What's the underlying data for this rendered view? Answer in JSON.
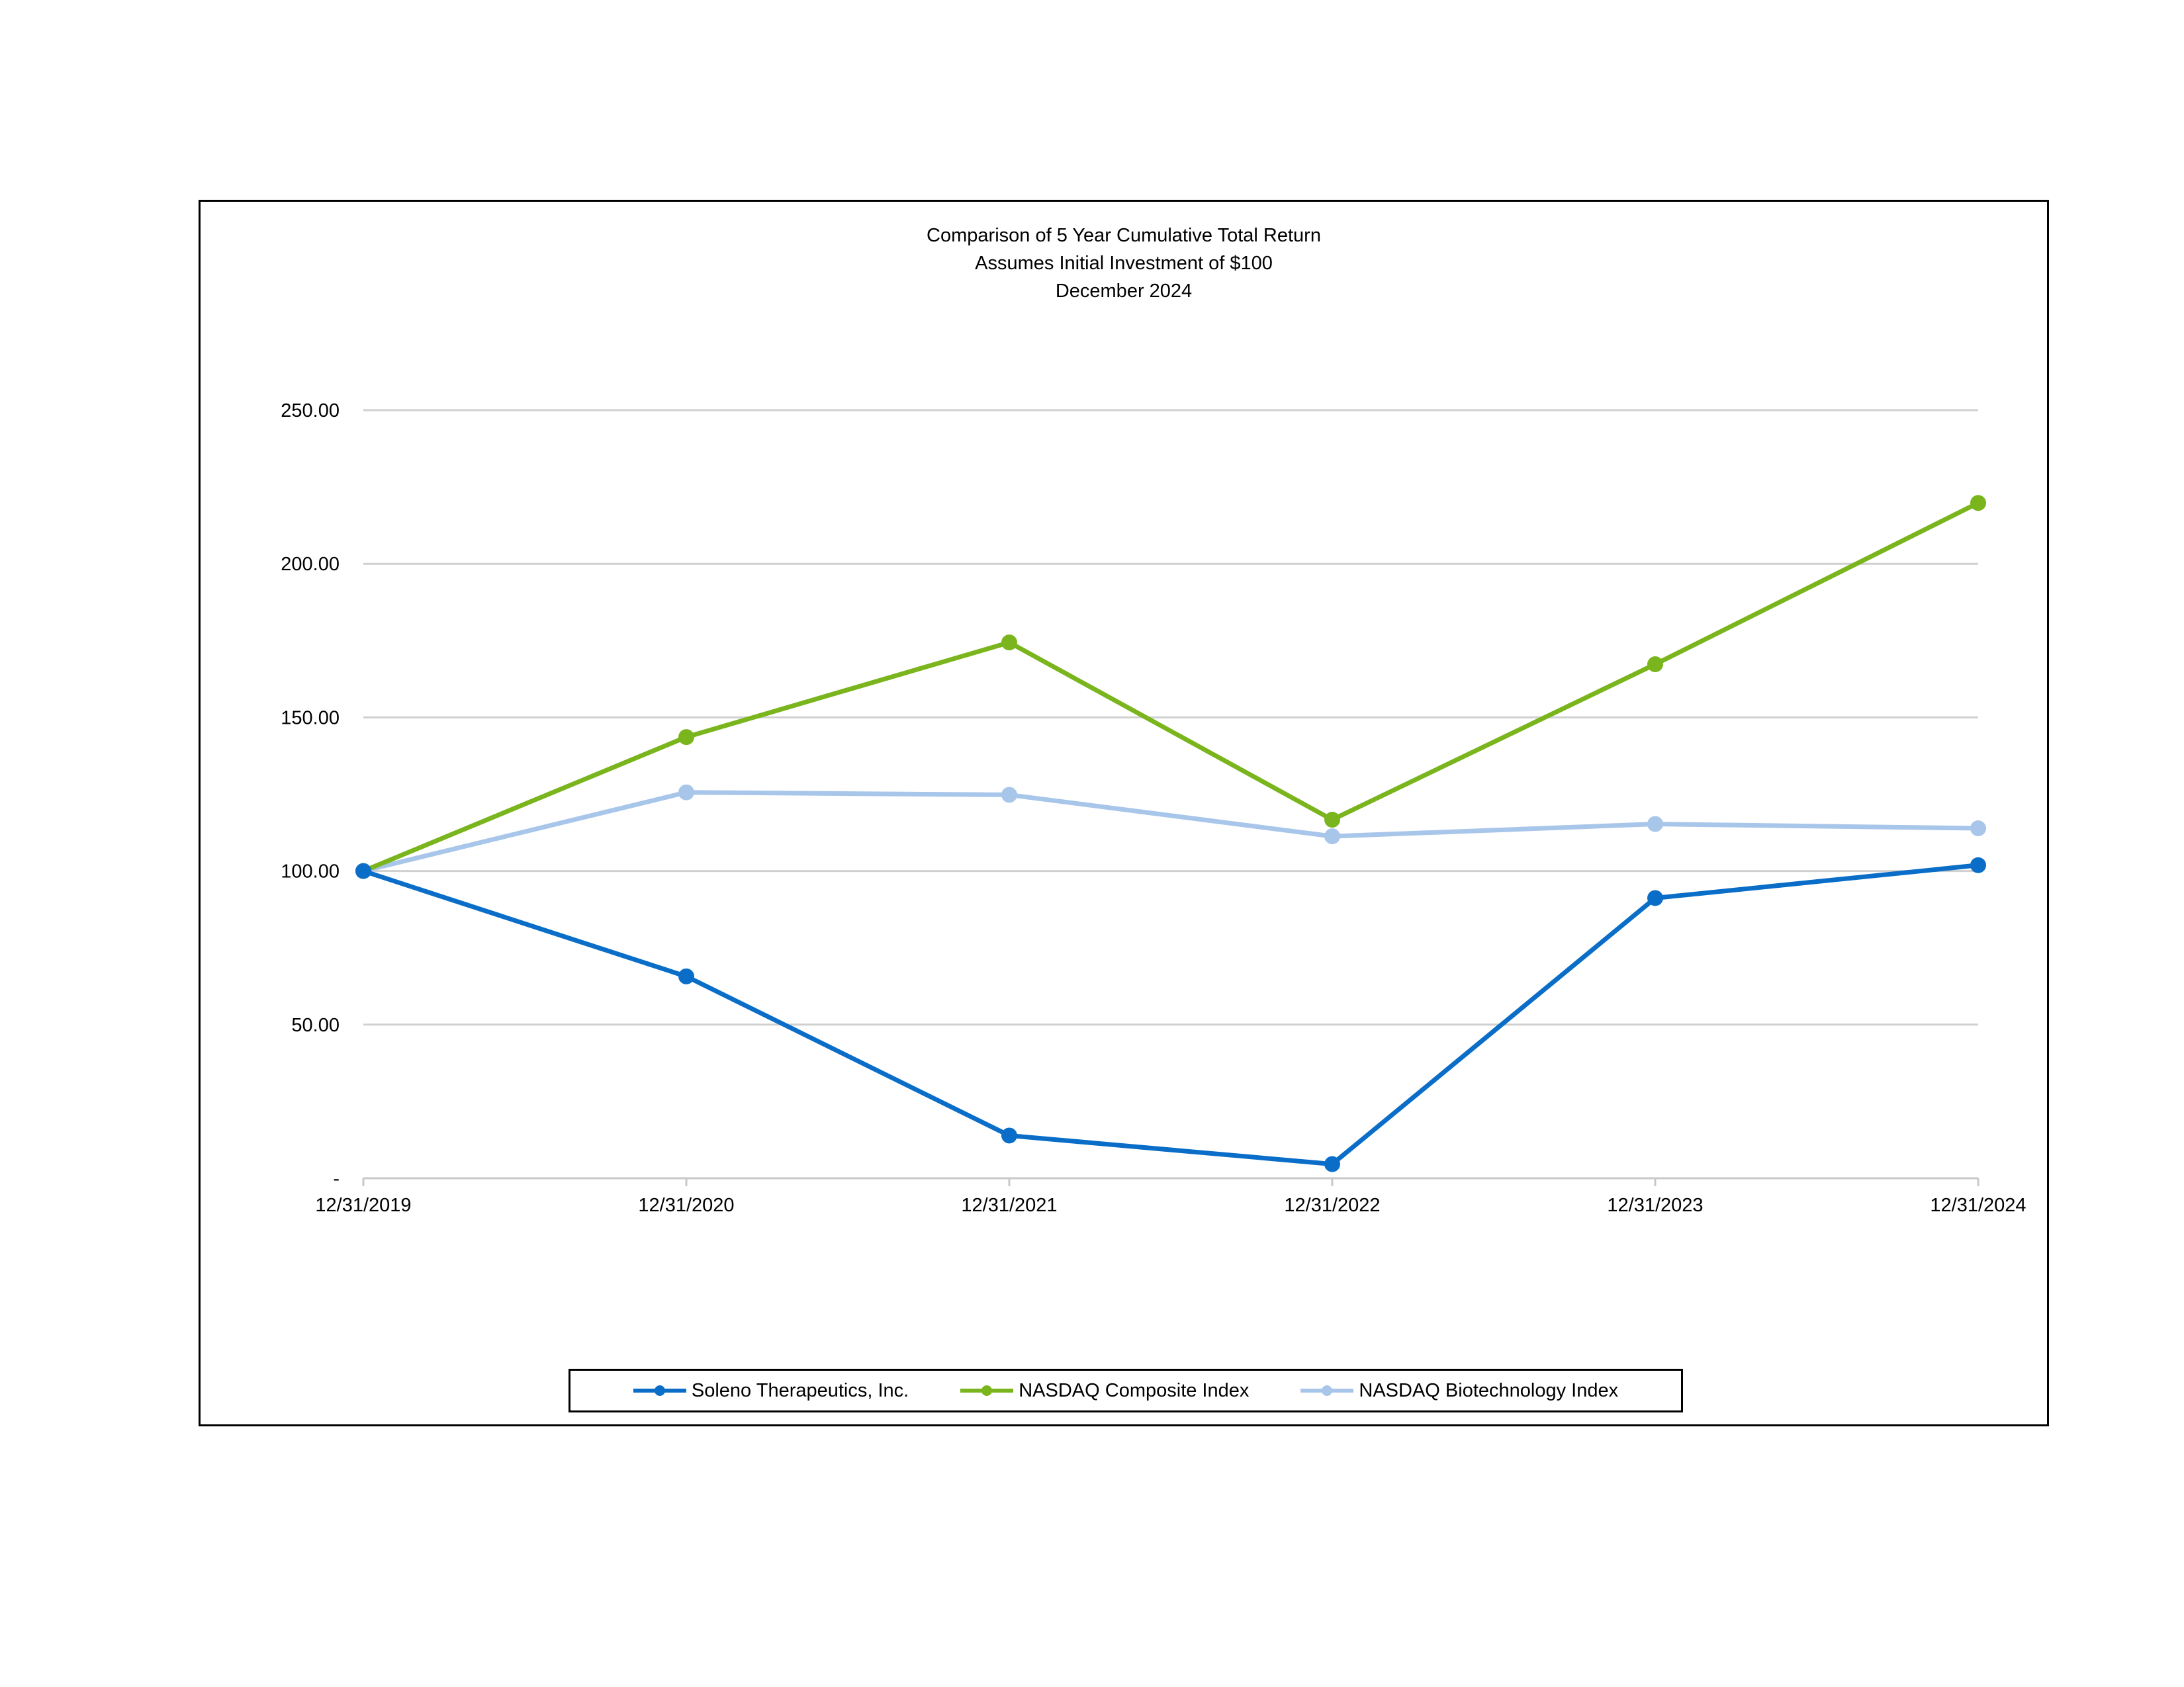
{
  "chart_data": {
    "type": "line",
    "title": "Comparison of 5 Year Cumulative Total Return",
    "subtitle": [
      "Assumes Initial Investment of $100",
      "December 2024"
    ],
    "xlabel": "",
    "ylabel": "",
    "categories": [
      "12/31/2019",
      "12/31/2020",
      "12/31/2021",
      "12/31/2022",
      "12/31/2023",
      "12/31/2024"
    ],
    "y_ticks": [
      {
        "value": 0,
        "label": "-"
      },
      {
        "value": 50,
        "label": "50.00"
      },
      {
        "value": 100,
        "label": "100.00"
      },
      {
        "value": 150,
        "label": "150.00"
      },
      {
        "value": 200,
        "label": "200.00"
      },
      {
        "value": 250,
        "label": "250.00"
      }
    ],
    "ylim": [
      0,
      250
    ],
    "grid": true,
    "legend_position": "bottom",
    "series": [
      {
        "name": "Soleno Therapeutics, Inc.",
        "color": "#0a6ec8",
        "values": [
          100.0,
          65.7,
          13.9,
          4.6,
          91.2,
          101.9
        ]
      },
      {
        "name": "NASDAQ Composite Index",
        "color": "#7ab51d",
        "values": [
          100.0,
          143.6,
          174.4,
          116.7,
          167.3,
          219.8
        ]
      },
      {
        "name": "NASDAQ Biotechnology Index",
        "color": "#a8c6ea",
        "values": [
          100.0,
          125.6,
          124.8,
          111.3,
          115.3,
          113.9
        ]
      }
    ]
  }
}
